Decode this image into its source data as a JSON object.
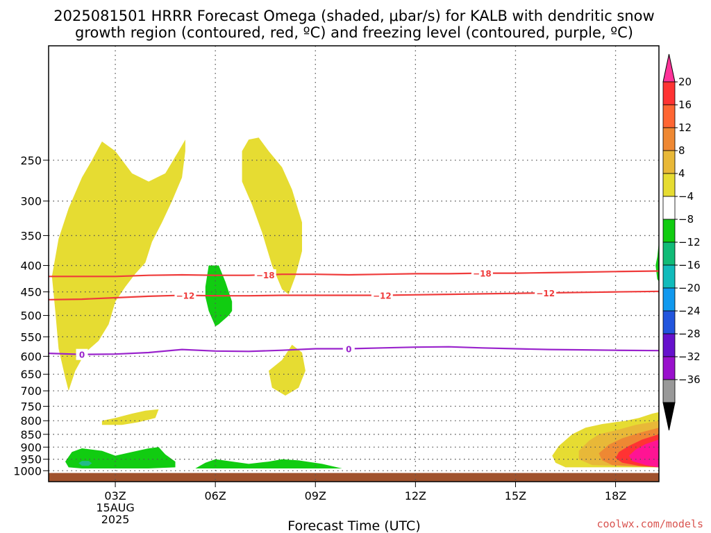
{
  "title_line1": "2025081501 HRRR Forecast Omega (shaded, μbar/s) for KALB with dendritic snow",
  "title_line2": "growth region (contoured, red, ºC) and freezing level (contoured, purple, ºC)",
  "credit": "coolwx.com/models",
  "chart_data": {
    "type": "heatmap",
    "xlabel": "Forecast Time (UTC)",
    "xlim": [
      1,
      19.3
    ],
    "x_ticks": [
      {
        "x": 3,
        "label": "03Z",
        "sub1": "15AUG",
        "sub2": "2025"
      },
      {
        "x": 6,
        "label": "06Z"
      },
      {
        "x": 9,
        "label": "09Z"
      },
      {
        "x": 12,
        "label": "12Z"
      },
      {
        "x": 15,
        "label": "15Z"
      },
      {
        "x": 18,
        "label": "18Z"
      }
    ],
    "ylabel": "",
    "y_scale": "log",
    "ylim": [
      1050,
      150
    ],
    "y_ticks": [
      250,
      300,
      350,
      400,
      450,
      500,
      550,
      600,
      650,
      700,
      750,
      800,
      850,
      900,
      950,
      1000
    ],
    "grid": true,
    "ground_color": "#a0522d",
    "ground_level": 1010,
    "colorbar": {
      "tick_labels": [
        "20",
        "16",
        "12",
        "8",
        "4",
        "−4",
        "−8",
        "−12",
        "−16",
        "−20",
        "−24",
        "−28",
        "−32",
        "−36"
      ],
      "colors": [
        "#ff3399",
        "#ff3333",
        "#ff6633",
        "#ee8833",
        "#e8b838",
        "#e6dc32",
        "#ffffff",
        "#11cc11",
        "#11bb77",
        "#11bbbb",
        "#1199ee",
        "#2255dd",
        "#6611cc",
        "#9911cc",
        "#999999",
        "#000000"
      ]
    },
    "omega_regions": [
      {
        "level": 4,
        "color": "#e6dc32",
        "points": [
          [
            1.6,
            700
          ],
          [
            1.8,
            640
          ],
          [
            2.1,
            590
          ],
          [
            2.5,
            560
          ],
          [
            2.8,
            520
          ],
          [
            3.0,
            470
          ],
          [
            3.3,
            440
          ],
          [
            3.6,
            415
          ],
          [
            3.9,
            395
          ],
          [
            4.1,
            360
          ],
          [
            4.4,
            330
          ],
          [
            4.7,
            300
          ],
          [
            5.0,
            270
          ],
          [
            5.1,
            240
          ],
          [
            5.1,
            228
          ],
          [
            4.9,
            240
          ],
          [
            4.5,
            265
          ],
          [
            4.0,
            275
          ],
          [
            3.5,
            265
          ],
          [
            3.0,
            240
          ],
          [
            2.6,
            230
          ],
          [
            2.3,
            250
          ],
          [
            2.0,
            270
          ],
          [
            1.6,
            310
          ],
          [
            1.3,
            355
          ],
          [
            1.1,
            420
          ],
          [
            1.2,
            490
          ],
          [
            1.3,
            580
          ],
          [
            1.5,
            660
          ]
        ]
      },
      {
        "level": 4,
        "color": "#e6dc32",
        "points": [
          [
            7.0,
            228
          ],
          [
            6.8,
            240
          ],
          [
            6.8,
            275
          ],
          [
            7.1,
            305
          ],
          [
            7.4,
            345
          ],
          [
            7.7,
            400
          ],
          [
            8.0,
            445
          ],
          [
            8.2,
            455
          ],
          [
            8.4,
            420
          ],
          [
            8.6,
            375
          ],
          [
            8.6,
            330
          ],
          [
            8.3,
            285
          ],
          [
            8.0,
            258
          ],
          [
            7.6,
            240
          ],
          [
            7.3,
            226
          ]
        ]
      },
      {
        "level": 4,
        "color": "#e6dc32",
        "points": [
          [
            8.0,
            610
          ],
          [
            8.3,
            570
          ],
          [
            8.6,
            590
          ],
          [
            8.7,
            640
          ],
          [
            8.5,
            690
          ],
          [
            8.1,
            715
          ],
          [
            7.7,
            690
          ],
          [
            7.6,
            640
          ]
        ]
      },
      {
        "level": 4,
        "color": "#e6dc32",
        "points": [
          [
            2.6,
            800
          ],
          [
            3.0,
            790
          ],
          [
            3.5,
            775
          ],
          [
            3.9,
            765
          ],
          [
            4.3,
            760
          ],
          [
            4.2,
            790
          ],
          [
            3.7,
            805
          ],
          [
            3.2,
            815
          ],
          [
            2.6,
            815
          ]
        ]
      },
      {
        "level": -4,
        "color": "#11cc11",
        "points": [
          [
            5.8,
            400
          ],
          [
            6.1,
            400
          ],
          [
            6.3,
            430
          ],
          [
            6.5,
            470
          ],
          [
            6.5,
            490
          ],
          [
            6.4,
            500
          ],
          [
            6.1,
            520
          ],
          [
            6.0,
            525
          ],
          [
            5.8,
            490
          ],
          [
            5.7,
            460
          ],
          [
            5.7,
            440
          ]
        ]
      },
      {
        "level": -4,
        "color": "#11cc11",
        "points": [
          [
            1.5,
            960
          ],
          [
            1.7,
            920
          ],
          [
            2.0,
            905
          ],
          [
            2.6,
            915
          ],
          [
            3.0,
            935
          ],
          [
            3.5,
            920
          ],
          [
            4.0,
            905
          ],
          [
            4.3,
            900
          ],
          [
            4.5,
            930
          ],
          [
            4.8,
            960
          ],
          [
            4.8,
            985
          ],
          [
            4.0,
            990
          ],
          [
            3.0,
            990
          ],
          [
            2.0,
            990
          ],
          [
            1.6,
            985
          ]
        ]
      },
      {
        "level": -4,
        "color": "#11cc11",
        "points": [
          [
            5.4,
            990
          ],
          [
            5.7,
            965
          ],
          [
            6.0,
            950
          ],
          [
            6.4,
            958
          ],
          [
            7.0,
            970
          ],
          [
            7.6,
            960
          ],
          [
            8.0,
            950
          ],
          [
            8.5,
            955
          ],
          [
            9.2,
            970
          ],
          [
            9.8,
            990
          ],
          [
            8.0,
            990
          ],
          [
            7.0,
            990
          ],
          [
            6.0,
            990
          ]
        ]
      },
      {
        "level": -8,
        "color": "#22bb88",
        "points": [
          [
            2.0,
            957
          ],
          [
            2.2,
            957
          ],
          [
            2.3,
            967
          ],
          [
            2.2,
            978
          ],
          [
            2.0,
            978
          ],
          [
            1.9,
            967
          ]
        ]
      },
      {
        "level": 4,
        "color": "#e6dc32",
        "points": [
          [
            19.3,
            770
          ],
          [
            19.1,
            775
          ],
          [
            18.7,
            790
          ],
          [
            18.3,
            800
          ],
          [
            18.0,
            805
          ],
          [
            17.6,
            812
          ],
          [
            17.1,
            825
          ],
          [
            16.7,
            850
          ],
          [
            16.3,
            895
          ],
          [
            16.1,
            935
          ],
          [
            16.2,
            965
          ],
          [
            16.5,
            985
          ],
          [
            19.3,
            985
          ]
        ]
      },
      {
        "level": 8,
        "color": "#e8b838",
        "points": [
          [
            19.3,
            800
          ],
          [
            18.6,
            815
          ],
          [
            18.0,
            835
          ],
          [
            17.5,
            850
          ],
          [
            17.2,
            875
          ],
          [
            16.9,
            915
          ],
          [
            16.9,
            950
          ],
          [
            17.3,
            975
          ],
          [
            19.3,
            985
          ]
        ]
      },
      {
        "level": 12,
        "color": "#ee8833",
        "points": [
          [
            19.3,
            825
          ],
          [
            18.7,
            845
          ],
          [
            18.2,
            865
          ],
          [
            17.8,
            890
          ],
          [
            17.5,
            925
          ],
          [
            17.6,
            955
          ],
          [
            17.9,
            975
          ],
          [
            19.3,
            985
          ]
        ]
      },
      {
        "level": 16,
        "color": "#ff3333",
        "points": [
          [
            19.3,
            850
          ],
          [
            18.8,
            870
          ],
          [
            18.4,
            895
          ],
          [
            18.1,
            920
          ],
          [
            18.0,
            945
          ],
          [
            18.2,
            965
          ],
          [
            18.7,
            978
          ],
          [
            19.3,
            985
          ]
        ]
      },
      {
        "level": 20,
        "color": "#ff1493",
        "points": [
          [
            19.3,
            870
          ],
          [
            18.9,
            888
          ],
          [
            18.6,
            910
          ],
          [
            18.4,
            935
          ],
          [
            18.5,
            958
          ],
          [
            18.9,
            975
          ],
          [
            19.3,
            985
          ]
        ]
      },
      {
        "level": -4,
        "color": "#11cc11",
        "points": [
          [
            19.3,
            360
          ],
          [
            19.25,
            385
          ],
          [
            19.2,
            400
          ],
          [
            19.25,
            425
          ],
          [
            19.3,
            430
          ]
        ]
      }
    ],
    "temperature_contours": [
      {
        "label": "−18",
        "color": "#ef3b3b",
        "points": [
          [
            1,
            420
          ],
          [
            2,
            420
          ],
          [
            3,
            420
          ],
          [
            4,
            418
          ],
          [
            5,
            417
          ],
          [
            6,
            418
          ],
          [
            7,
            418
          ],
          [
            8,
            416
          ],
          [
            9,
            416
          ],
          [
            10,
            417
          ],
          [
            11,
            416
          ],
          [
            12,
            415
          ],
          [
            13,
            415
          ],
          [
            14,
            414
          ],
          [
            15,
            414
          ],
          [
            16,
            413
          ],
          [
            17,
            412
          ],
          [
            18,
            411
          ],
          [
            19.3,
            410
          ]
        ],
        "label_x": [
          7.5,
          14
        ]
      },
      {
        "label": "−12",
        "color": "#ef3b3b",
        "points": [
          [
            1,
            466
          ],
          [
            2,
            465
          ],
          [
            3,
            462
          ],
          [
            4,
            459
          ],
          [
            5,
            457
          ],
          [
            6,
            458
          ],
          [
            7,
            458
          ],
          [
            8,
            457
          ],
          [
            9,
            457
          ],
          [
            10,
            457
          ],
          [
            11,
            457
          ],
          [
            12,
            456
          ],
          [
            13,
            455
          ],
          [
            14,
            454
          ],
          [
            15,
            453
          ],
          [
            16,
            452
          ],
          [
            17,
            451
          ],
          [
            18,
            450
          ],
          [
            19.3,
            449
          ]
        ],
        "label_x": [
          5.1,
          11,
          15.9
        ]
      },
      {
        "label": "0",
        "color": "#9922cc",
        "points": [
          [
            1,
            592
          ],
          [
            2,
            595
          ],
          [
            3,
            594
          ],
          [
            4,
            590
          ],
          [
            5,
            582
          ],
          [
            6,
            586
          ],
          [
            7,
            587
          ],
          [
            8,
            584
          ],
          [
            9,
            580
          ],
          [
            10,
            580
          ],
          [
            11,
            578
          ],
          [
            12,
            576
          ],
          [
            13,
            575
          ],
          [
            14,
            578
          ],
          [
            15,
            580
          ],
          [
            16,
            582
          ],
          [
            17,
            583
          ],
          [
            18,
            584
          ],
          [
            19.3,
            585
          ]
        ],
        "label_x": [
          2,
          10
        ]
      }
    ]
  }
}
